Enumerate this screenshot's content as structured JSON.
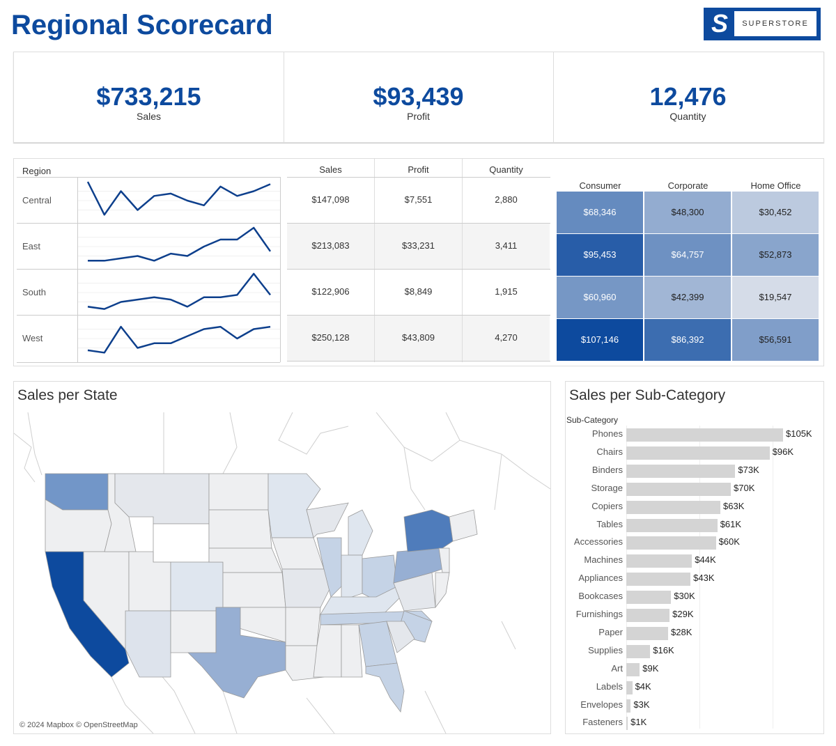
{
  "header": {
    "title": "Regional Scorecard",
    "logo_letter": "S",
    "logo_word": "SUPERSTORE"
  },
  "kpis": [
    {
      "value": "$733,215",
      "label": "Sales"
    },
    {
      "value": "$93,439",
      "label": "Profit"
    },
    {
      "value": "12,476",
      "label": "Quantity"
    }
  ],
  "colors": {
    "accent": "#0d4a9e",
    "line": "#0d3f8c",
    "bar": "#d4d4d4"
  },
  "chart_data": [
    {
      "type": "line",
      "title": "",
      "row_header": "Region",
      "series": [
        {
          "name": "Central",
          "values": [
            8,
            1,
            6,
            2,
            5,
            5.5,
            4,
            3,
            7,
            5,
            6,
            7.5
          ]
        },
        {
          "name": "East",
          "values": [
            1,
            1,
            1.5,
            2,
            1,
            2.5,
            2,
            4,
            5.5,
            5.5,
            8,
            3
          ]
        },
        {
          "name": "South",
          "values": [
            1,
            0.5,
            2,
            2.5,
            3,
            2.5,
            1,
            3,
            3,
            3.5,
            8,
            3.5
          ]
        },
        {
          "name": "West",
          "values": [
            1.5,
            1,
            6.5,
            2,
            3,
            3,
            4.5,
            6,
            6.5,
            4,
            6,
            6.5
          ]
        }
      ]
    },
    {
      "type": "table",
      "columns": [
        "Sales",
        "Profit",
        "Quantity"
      ],
      "rows": [
        {
          "region": "Central",
          "cells": [
            "$147,098",
            "$7,551",
            "2,880"
          ]
        },
        {
          "region": "East",
          "cells": [
            "$213,083",
            "$33,231",
            "3,411"
          ]
        },
        {
          "region": "South",
          "cells": [
            "$122,906",
            "$8,849",
            "1,915"
          ]
        },
        {
          "region": "West",
          "cells": [
            "$250,128",
            "$43,809",
            "4,270"
          ]
        }
      ]
    },
    {
      "type": "heatmap",
      "columns": [
        "Consumer",
        "Corporate",
        "Home Office"
      ],
      "rows": [
        {
          "labels": [
            "$68,346",
            "$48,300",
            "$30,452"
          ],
          "values": [
            68346,
            48300,
            30452
          ]
        },
        {
          "labels": [
            "$95,453",
            "$64,757",
            "$52,873"
          ],
          "values": [
            95453,
            64757,
            52873
          ]
        },
        {
          "labels": [
            "$60,960",
            "$42,399",
            "$19,547"
          ],
          "values": [
            60960,
            42399,
            19547
          ]
        },
        {
          "labels": [
            "$107,146",
            "$86,392",
            "$56,591"
          ],
          "values": [
            107146,
            86392,
            56591
          ]
        }
      ]
    },
    {
      "type": "bar",
      "title": "Sales per Sub-Category",
      "ylabel": "Sub-Category",
      "categories": [
        "Phones",
        "Chairs",
        "Binders",
        "Storage",
        "Copiers",
        "Tables",
        "Accessories",
        "Machines",
        "Appliances",
        "Bookcases",
        "Furnishings",
        "Paper",
        "Supplies",
        "Art",
        "Labels",
        "Envelopes",
        "Fasteners"
      ],
      "values": [
        105,
        96,
        73,
        70,
        63,
        61,
        60,
        44,
        43,
        30,
        29,
        28,
        16,
        9,
        4,
        3,
        1
      ],
      "labels": [
        "$105K",
        "$96K",
        "$73K",
        "$70K",
        "$63K",
        "$61K",
        "$60K",
        "$44K",
        "$43K",
        "$30K",
        "$29K",
        "$28K",
        "$16K",
        "$9K",
        "$4K",
        "$3K",
        "$1K"
      ],
      "xlim": [
        0,
        105
      ]
    }
  ],
  "map": {
    "title": "Sales per State",
    "credit": "© 2024 Mapbox © OpenStreetMap"
  }
}
